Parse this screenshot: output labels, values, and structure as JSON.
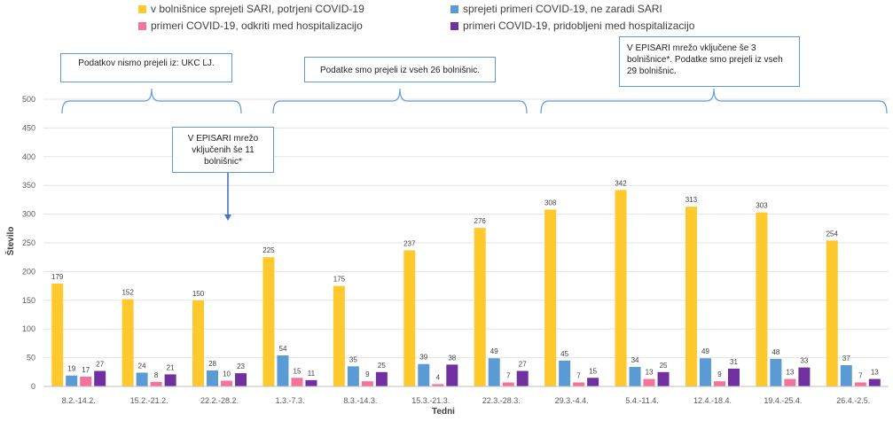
{
  "chart_data": {
    "type": "bar",
    "title": "",
    "xlabel": "Tedni",
    "ylabel": "Število",
    "ylim": [
      0,
      500
    ],
    "yticks": [
      0,
      50,
      100,
      150,
      200,
      250,
      300,
      350,
      400,
      450,
      500
    ],
    "grid": true,
    "legend_position": "top",
    "categories": [
      "8.2.-14.2.",
      "15.2.-21.2.",
      "22.2.-28.2.",
      "1.3.-7.3.",
      "8.3.-14.3.",
      "15.3.-21.3.",
      "22.3.-28.3.",
      "29.3.-4.4.",
      "5.4.-11.4.",
      "12.4.-18.4.",
      "19.4.-25.4.",
      "26.4.-2.5."
    ],
    "series": [
      {
        "name": "v bolnišnice sprejeti SARI, potrjeni COVID-19",
        "color": "#ffc82c",
        "values": [
          179,
          152,
          150,
          225,
          175,
          237,
          276,
          308,
          342,
          313,
          303,
          254
        ]
      },
      {
        "name": "sprejeti primeri COVID-19, ne zaradi SARI",
        "color": "#5b9bd5",
        "values": [
          19,
          24,
          28,
          54,
          35,
          39,
          49,
          45,
          34,
          49,
          48,
          37
        ]
      },
      {
        "name": "primeri COVID-19, odkriti med hospitalizacijo",
        "color": "#f4739d",
        "values": [
          17,
          8,
          10,
          15,
          9,
          4,
          7,
          7,
          13,
          9,
          13,
          7
        ]
      },
      {
        "name": "primeri COVID-19, pridobljeni med hospitalizacijo",
        "color": "#7030a0",
        "values": [
          27,
          21,
          23,
          11,
          25,
          38,
          27,
          15,
          25,
          31,
          33,
          13
        ]
      }
    ],
    "annotations": [
      {
        "text": "Podatkov nismo prejeli iz: UKC LJ."
      },
      {
        "text": "Podatke smo prejeli iz vseh 26 bolnišnic."
      },
      {
        "text": "V EPISARI mrežo vključene še 3 bolnišnice*. Podatke smo prejeli iz vseh 29 bolnišnic."
      },
      {
        "text": "V EPISARI mrežo vključenih še 11 bolnišnic*"
      }
    ]
  }
}
